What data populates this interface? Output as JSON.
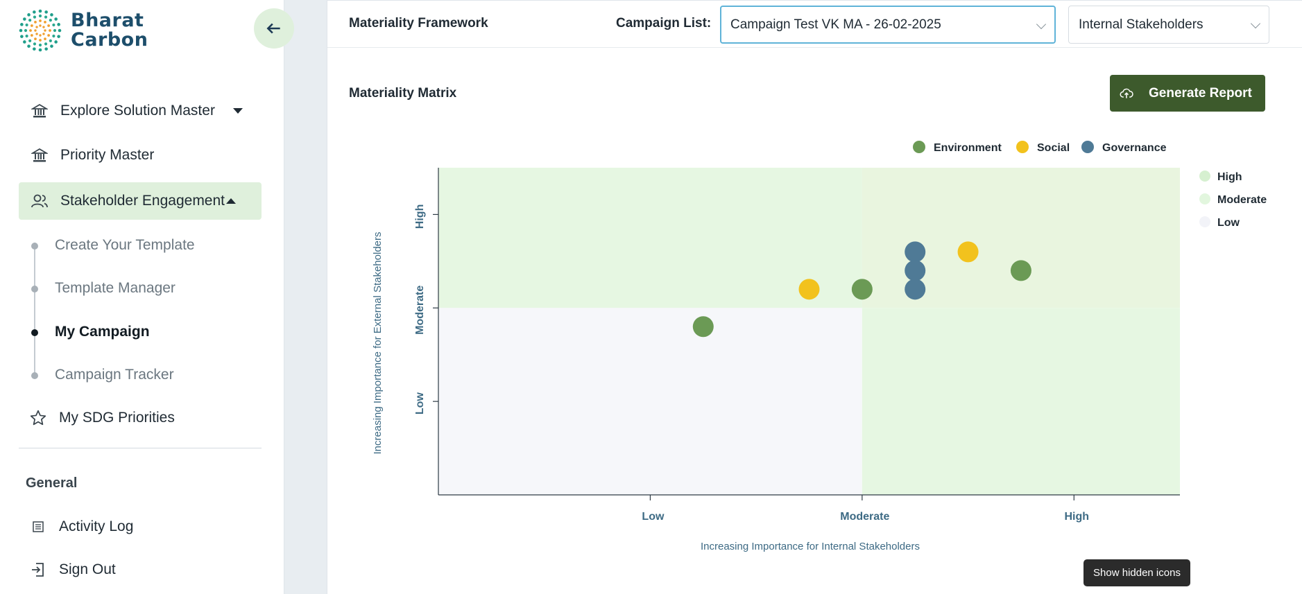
{
  "brand": {
    "line1": "Bharat",
    "line2": "Carbon"
  },
  "sidebar": {
    "items": [
      {
        "label": "Explore Solution Master",
        "icon": "bank-icon"
      },
      {
        "label": "Priority Master",
        "icon": "bank-icon"
      },
      {
        "label": "Stakeholder Engagement",
        "icon": "users-icon"
      }
    ],
    "sub_items": [
      {
        "label": "Create Your Template"
      },
      {
        "label": "Template Manager"
      },
      {
        "label": "My Campaign"
      },
      {
        "label": "Campaign Tracker"
      }
    ],
    "sdg": {
      "label": "My SDG Priorities",
      "icon": "star-icon"
    },
    "section_label": "General",
    "general_items": [
      {
        "label": "Activity Log",
        "icon": "log-icon"
      },
      {
        "label": "Sign Out",
        "icon": "sign-out-icon"
      }
    ]
  },
  "header": {
    "title": "Materiality Framework",
    "campaign_label": "Campaign List:",
    "campaign_value": "Campaign Test VK MA - 26-02-2025",
    "stakeholder_value": "Internal Stakeholders"
  },
  "matrix": {
    "title": "Materiality Matrix",
    "generate_label": "Generate Report"
  },
  "chart_data": {
    "type": "scatter",
    "xlabel": "Increasing Importance for Internal Stakeholders",
    "ylabel": "Increasing Importance for External Stakeholders",
    "x_ticks": [
      "Low",
      "Moderate",
      "High"
    ],
    "y_ticks": [
      "Low",
      "Moderate",
      "High"
    ],
    "xlim": [
      0,
      3.5
    ],
    "ylim": [
      0,
      3.5
    ],
    "legend_position": "top",
    "series": [
      {
        "name": "Environment",
        "color": "#6b9a55",
        "points": [
          [
            1.25,
            1.8
          ],
          [
            2.0,
            2.2
          ],
          [
            2.75,
            2.4
          ]
        ]
      },
      {
        "name": "Social",
        "color": "#f2c21d",
        "points": [
          [
            1.75,
            2.2
          ],
          [
            2.5,
            2.6
          ]
        ]
      },
      {
        "name": "Governance",
        "color": "#4f7a96",
        "points": [
          [
            2.25,
            2.6
          ],
          [
            2.25,
            2.4
          ],
          [
            2.25,
            2.2
          ]
        ]
      }
    ],
    "zones": [
      {
        "name": "High",
        "color": "#d6f0d0"
      },
      {
        "name": "Moderate",
        "color": "#e2f6de"
      },
      {
        "name": "Low",
        "color": "#f2f3f8"
      }
    ]
  },
  "tooltip": "Show hidden icons"
}
